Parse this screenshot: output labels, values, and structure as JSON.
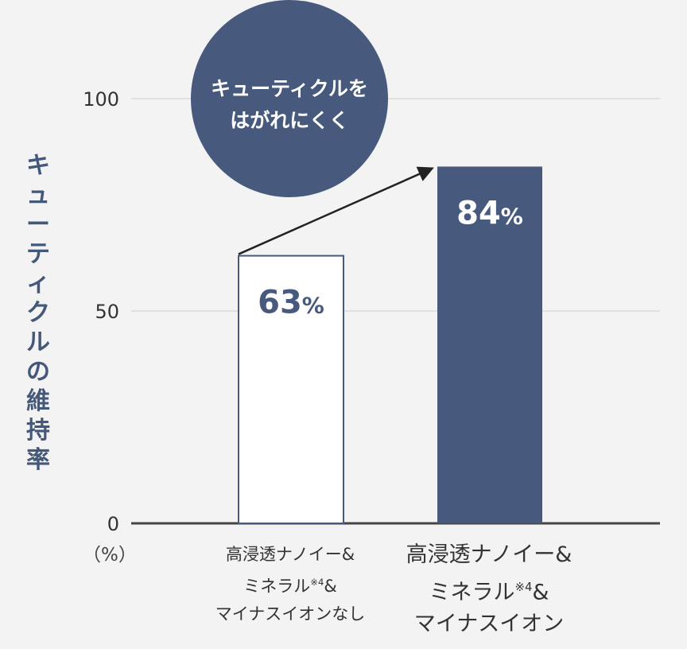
{
  "chart_data": {
    "type": "bar",
    "ylabel": "キューティクルの維持率",
    "unit": "（%）",
    "ylim": [
      0,
      100
    ],
    "yticks": [
      0,
      50,
      100
    ],
    "grid": true,
    "categories": [
      {
        "lines": [
          "高浸透ナノイー&",
          "ミネラル",
          "マイナスイオンなし"
        ],
        "note": "※4",
        "note_suffix": "&"
      },
      {
        "lines": [
          "高浸透ナノイー&",
          "ミネラル",
          "マイナスイオン"
        ],
        "note": "※4",
        "note_suffix": "&"
      }
    ],
    "values": [
      63,
      84
    ],
    "value_labels": [
      "63%",
      "84%"
    ],
    "bar_styles": [
      "outline",
      "filled"
    ],
    "annotation": {
      "lines": [
        "キューティクルを",
        "はがれにくく"
      ],
      "shape": "circle",
      "arrow": "from-bar-0-to-bar-1"
    }
  },
  "colors": {
    "navy": "#475a7e",
    "grid": "#cccccc",
    "axis": "#444444",
    "background": "#f3f3f3",
    "outline_fill": "#ffffff"
  }
}
